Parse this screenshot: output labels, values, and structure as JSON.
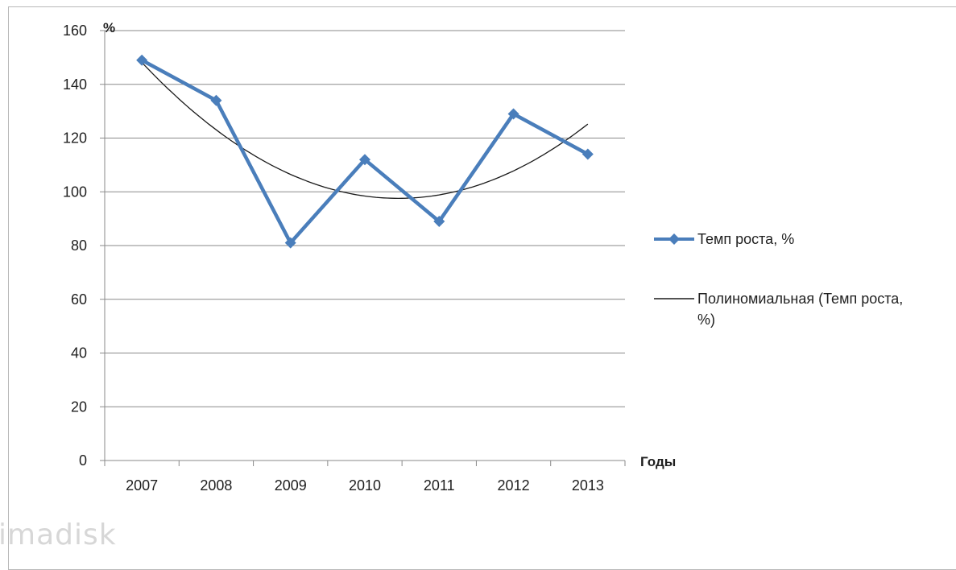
{
  "chart_data": {
    "type": "line",
    "categories": [
      "2007",
      "2008",
      "2009",
      "2010",
      "2011",
      "2012",
      "2013"
    ],
    "series": [
      {
        "name": "Темп роста, %",
        "values": [
          149,
          134,
          81,
          112,
          89,
          129,
          114
        ],
        "color": "#4a7ebb",
        "marker": "diamond"
      }
    ],
    "trendline": {
      "name": "Полиномиальная (Темп роста, %)",
      "kind": "polynomial",
      "color": "#1a1a1a"
    },
    "ylabel": "%",
    "xlabel": "Годы",
    "ylim": [
      0,
      160
    ],
    "yticks": [
      0,
      20,
      40,
      60,
      80,
      100,
      120,
      140,
      160
    ],
    "grid": true,
    "legend_position": "right"
  },
  "legend": {
    "series_label": "Темп роста, %",
    "trend_line1": "Полиномиальная (Темп роста,",
    "trend_line2": "%)"
  },
  "watermark": "imadisk"
}
